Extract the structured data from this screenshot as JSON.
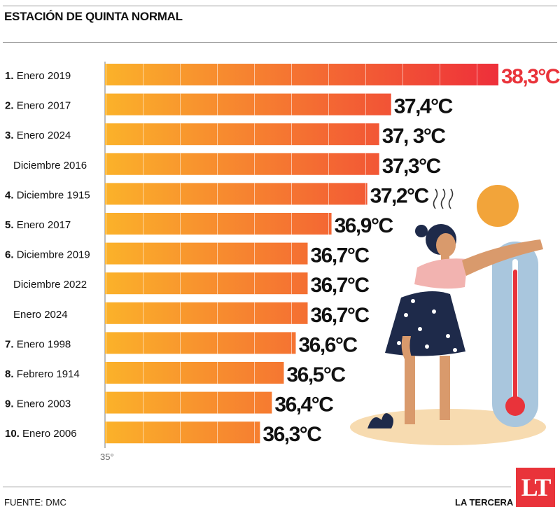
{
  "header": {
    "title": "ESTACIÓN DE QUINTA NORMAL"
  },
  "chart_data": {
    "type": "bar",
    "orientation": "horizontal",
    "title": "ESTACIÓN DE QUINTA NORMAL",
    "xlabel": "",
    "ylabel": "",
    "x_tick_label": "35°",
    "xlim": [
      35,
      38.3
    ],
    "categories": [
      {
        "rank": "1.",
        "name": "Enero 2019"
      },
      {
        "rank": "2.",
        "name": "Enero 2017"
      },
      {
        "rank": "3.",
        "name": "Enero 2024"
      },
      {
        "rank": "",
        "name": "Diciembre 2016"
      },
      {
        "rank": "4.",
        "name": "Diciembre 1915"
      },
      {
        "rank": "5.",
        "name": "Enero 2017"
      },
      {
        "rank": "6.",
        "name": "Diciembre 2019"
      },
      {
        "rank": "",
        "name": "Diciembre 2022"
      },
      {
        "rank": "",
        "name": "Enero 2024"
      },
      {
        "rank": "7.",
        "name": "Enero 1998"
      },
      {
        "rank": "8.",
        "name": "Febrero 1914"
      },
      {
        "rank": "9.",
        "name": "Enero 2003"
      },
      {
        "rank": "10.",
        "name": "Enero 2006"
      }
    ],
    "values": [
      38.3,
      37.4,
      37.3,
      37.3,
      37.2,
      36.9,
      36.7,
      36.7,
      36.7,
      36.6,
      36.5,
      36.4,
      36.3
    ],
    "value_labels": [
      "38,3°C",
      "37,4°C",
      "37, 3°C",
      "37,3°C",
      "37,2°C",
      "36,9°C",
      "36,7°C",
      "36,7°C",
      "36,7°C",
      "36,6°C",
      "36,5°C",
      "36,4°C",
      "36,3°C"
    ],
    "colors": {
      "gradient_start": "#fbb22a",
      "gradient_end": "#ee2f3a",
      "highlight": "#e9333a"
    },
    "grid": false,
    "legend": "none"
  },
  "footer": {
    "source": "FUENTE: DMC",
    "brand": "LA TERCERA",
    "logo": "LT"
  }
}
